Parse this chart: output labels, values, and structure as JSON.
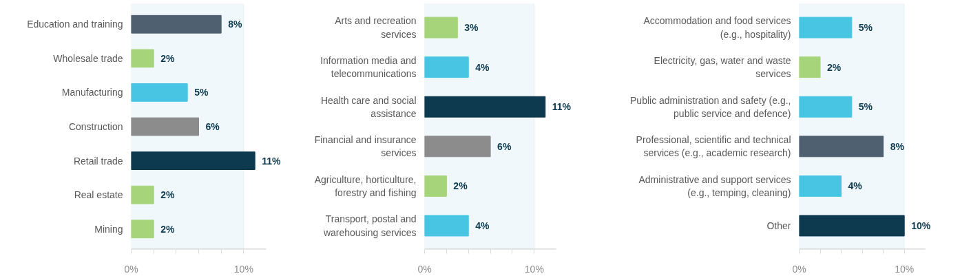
{
  "chart_data": [
    {
      "type": "bar",
      "orientation": "horizontal",
      "categories": [
        "Education and training",
        "Wholesale trade",
        "Manufacturing",
        "Construction",
        "Retail trade",
        "Real estate",
        "Mining"
      ],
      "values": [
        8,
        2,
        5,
        6,
        11,
        2,
        2
      ],
      "value_labels": [
        "8%",
        "2%",
        "5%",
        "6%",
        "11%",
        "2%",
        "2%"
      ],
      "colors": [
        "#4f6170",
        "#a5d47a",
        "#48c5e3",
        "#8c8c8c",
        "#0e3a4f",
        "#a5d47a",
        "#a5d47a"
      ],
      "xlim": [
        0,
        12
      ],
      "xticks": [
        {
          "value": 0,
          "label": "0%"
        },
        {
          "value": 2,
          "label": null
        },
        {
          "value": 4,
          "label": null
        },
        {
          "value": 6,
          "label": null
        },
        {
          "value": 8,
          "label": null
        },
        {
          "value": 10,
          "label": "10%"
        }
      ],
      "bands": [
        {
          "axis": "x",
          "from": 0,
          "to": 10,
          "color": "#f0f8fc"
        }
      ],
      "grid": false
    },
    {
      "type": "bar",
      "orientation": "horizontal",
      "categories": [
        "Arts and recreation\nservices",
        "Information media and\ntelecommunications",
        "Health care and social\nassistance",
        "Financial and insurance\nservices",
        "Agriculture, horticulture,\nforestry and fishing",
        "Transport, postal and\nwarehousing services"
      ],
      "values": [
        3,
        4,
        11,
        6,
        2,
        4
      ],
      "value_labels": [
        "3%",
        "4%",
        "11%",
        "6%",
        "2%",
        "4%"
      ],
      "colors": [
        "#a5d47a",
        "#48c5e3",
        "#0e3a4f",
        "#8c8c8c",
        "#a5d47a",
        "#48c5e3"
      ],
      "xlim": [
        0,
        12
      ],
      "xticks": [
        {
          "value": 0,
          "label": "0%"
        },
        {
          "value": 2,
          "label": null
        },
        {
          "value": 4,
          "label": null
        },
        {
          "value": 6,
          "label": null
        },
        {
          "value": 8,
          "label": null
        },
        {
          "value": 10,
          "label": "10%"
        }
      ],
      "bands": [
        {
          "axis": "x",
          "from": 0,
          "to": 10,
          "color": "#f0f8fc"
        }
      ],
      "grid": false
    },
    {
      "type": "bar",
      "orientation": "horizontal",
      "categories": [
        "Accommodation and food services\n(e.g., hospitality)",
        "Electricity, gas, water and waste\nservices",
        "Public administration and safety (e.g.,\npublic service and defence)",
        "Professional, scientific and technical\nservices (e.g., academic research)",
        "Administrative and support services\n(e.g., temping, cleaning)",
        "Other"
      ],
      "values": [
        5,
        2,
        5,
        8,
        4,
        10
      ],
      "value_labels": [
        "5%",
        "2%",
        "5%",
        "8%",
        "4%",
        "10%"
      ],
      "colors": [
        "#48c5e3",
        "#a5d47a",
        "#48c5e3",
        "#4f6170",
        "#48c5e3",
        "#0e3a4f"
      ],
      "xlim": [
        0,
        12
      ],
      "xticks": [
        {
          "value": 0,
          "label": "0%"
        },
        {
          "value": 2,
          "label": null
        },
        {
          "value": 4,
          "label": null
        },
        {
          "value": 6,
          "label": null
        },
        {
          "value": 8,
          "label": null
        },
        {
          "value": 10,
          "label": "10%"
        }
      ],
      "bands": [
        {
          "axis": "x",
          "from": 0,
          "to": 10,
          "color": "#f0f8fc"
        }
      ],
      "grid": false
    }
  ]
}
